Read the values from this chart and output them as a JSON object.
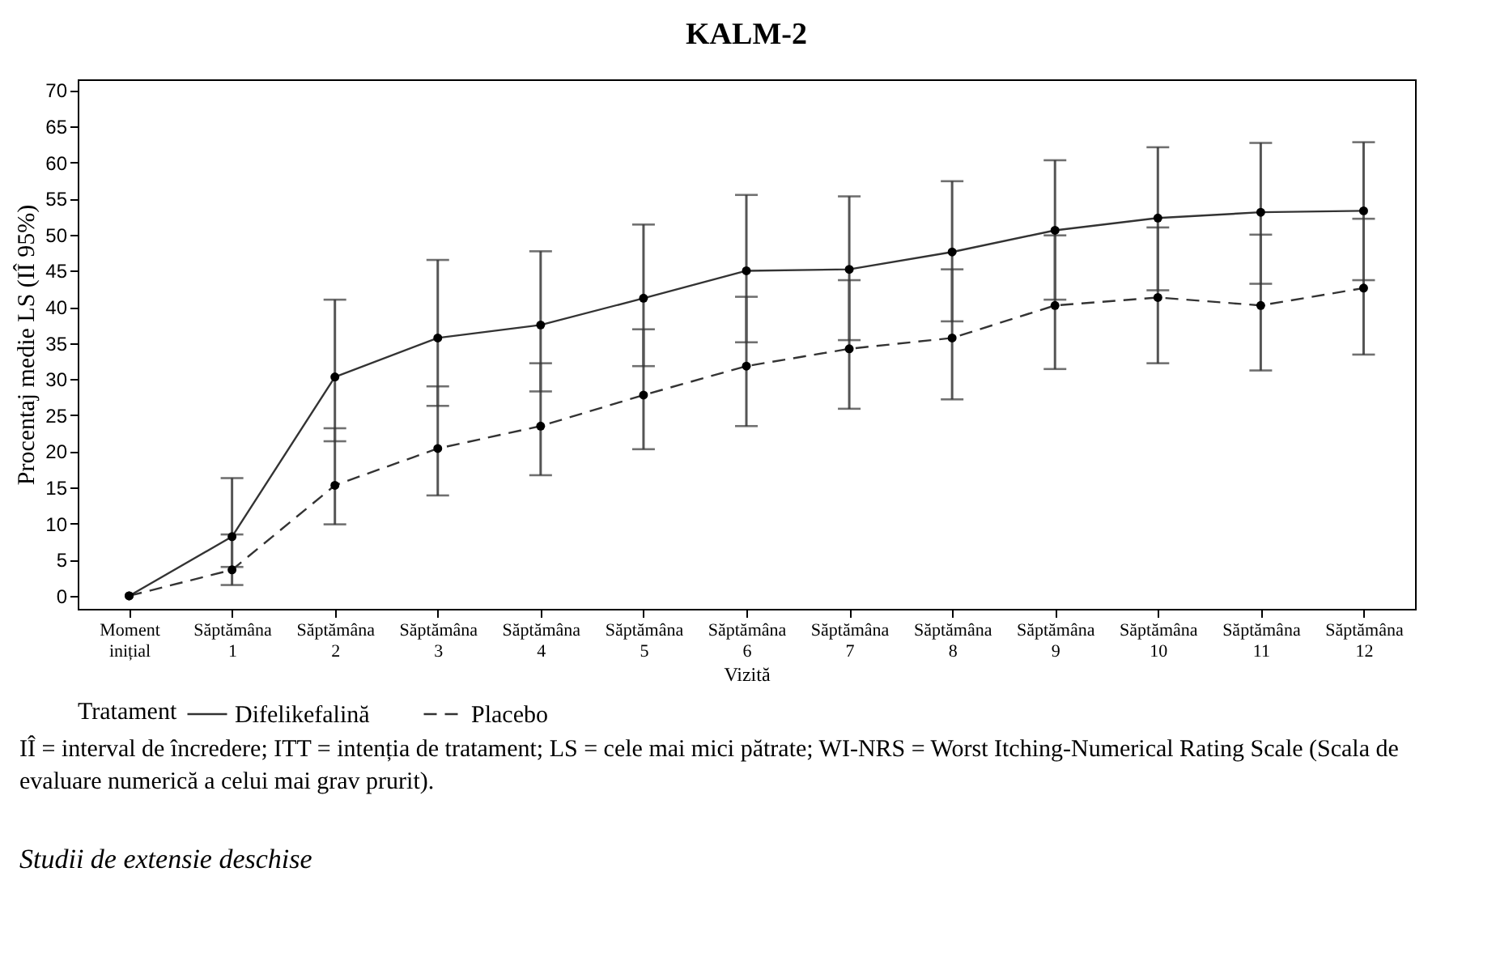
{
  "chart_data": {
    "type": "line",
    "title": "KALM-2",
    "xlabel": "Vizită",
    "ylabel": "Procentaj medie LS (IÎ 95%)",
    "legend_title": "Tratament",
    "categories": [
      "Moment inițial",
      "Săptămâna 1",
      "Săptămâna 2",
      "Săptămâna 3",
      "Săptămâna 4",
      "Săptămâna 5",
      "Săptămâna 6",
      "Săptămâna 7",
      "Săptămâna 8",
      "Săptămâna 9",
      "Săptămâna 10",
      "Săptămâna 11",
      "Săptămâna 12"
    ],
    "series": [
      {
        "name": "Difelikefalină",
        "color": "#000000",
        "line_style": "solid",
        "values": [
          0,
          8.2,
          30.3,
          35.7,
          37.5,
          41.2,
          45.0,
          45.2,
          47.6,
          50.6,
          52.3,
          53.1,
          53.3
        ],
        "errors": [
          null,
          [
            4.0,
            16.3
          ],
          [
            21.4,
            41.0
          ],
          [
            26.3,
            46.5
          ],
          [
            28.3,
            47.7
          ],
          [
            31.8,
            51.4
          ],
          [
            35.1,
            55.5
          ],
          [
            35.4,
            55.3
          ],
          [
            38.0,
            57.4
          ],
          [
            41.0,
            60.3
          ],
          [
            42.3,
            62.1
          ],
          [
            43.2,
            62.7
          ],
          [
            43.7,
            62.8
          ]
        ]
      },
      {
        "name": "Placebo",
        "color": "#000000",
        "line_style": "dashed",
        "values": [
          0,
          3.6,
          15.3,
          20.4,
          23.5,
          27.8,
          31.8,
          34.2,
          35.7,
          40.2,
          41.3,
          40.2,
          42.6
        ],
        "errors": [
          null,
          [
            1.5,
            8.5
          ],
          [
            9.9,
            23.2
          ],
          [
            13.9,
            29.0
          ],
          [
            16.7,
            32.2
          ],
          [
            20.3,
            36.9
          ],
          [
            23.5,
            41.4
          ],
          [
            25.9,
            43.7
          ],
          [
            27.2,
            45.2
          ],
          [
            31.4,
            49.9
          ],
          [
            32.2,
            51.0
          ],
          [
            31.2,
            50.0
          ],
          [
            33.4,
            52.2
          ]
        ]
      }
    ],
    "ylim": [
      -1.8,
      71.5
    ],
    "yticks": [
      0,
      5,
      10,
      15,
      20,
      25,
      30,
      35,
      40,
      45,
      50,
      55,
      60,
      65,
      70
    ],
    "grid": false,
    "legend": "bottom",
    "marker": "circle",
    "annotations": [
      "IÎ = interval de încredere; ITT = intenția de tratament; LS = cele mai mici pătrate; WI-NRS = Worst Itching-Numerical Rating Scale (Scala de evaluare numerică a celui mai grav prurit).",
      "Studii de extensie deschise"
    ]
  }
}
